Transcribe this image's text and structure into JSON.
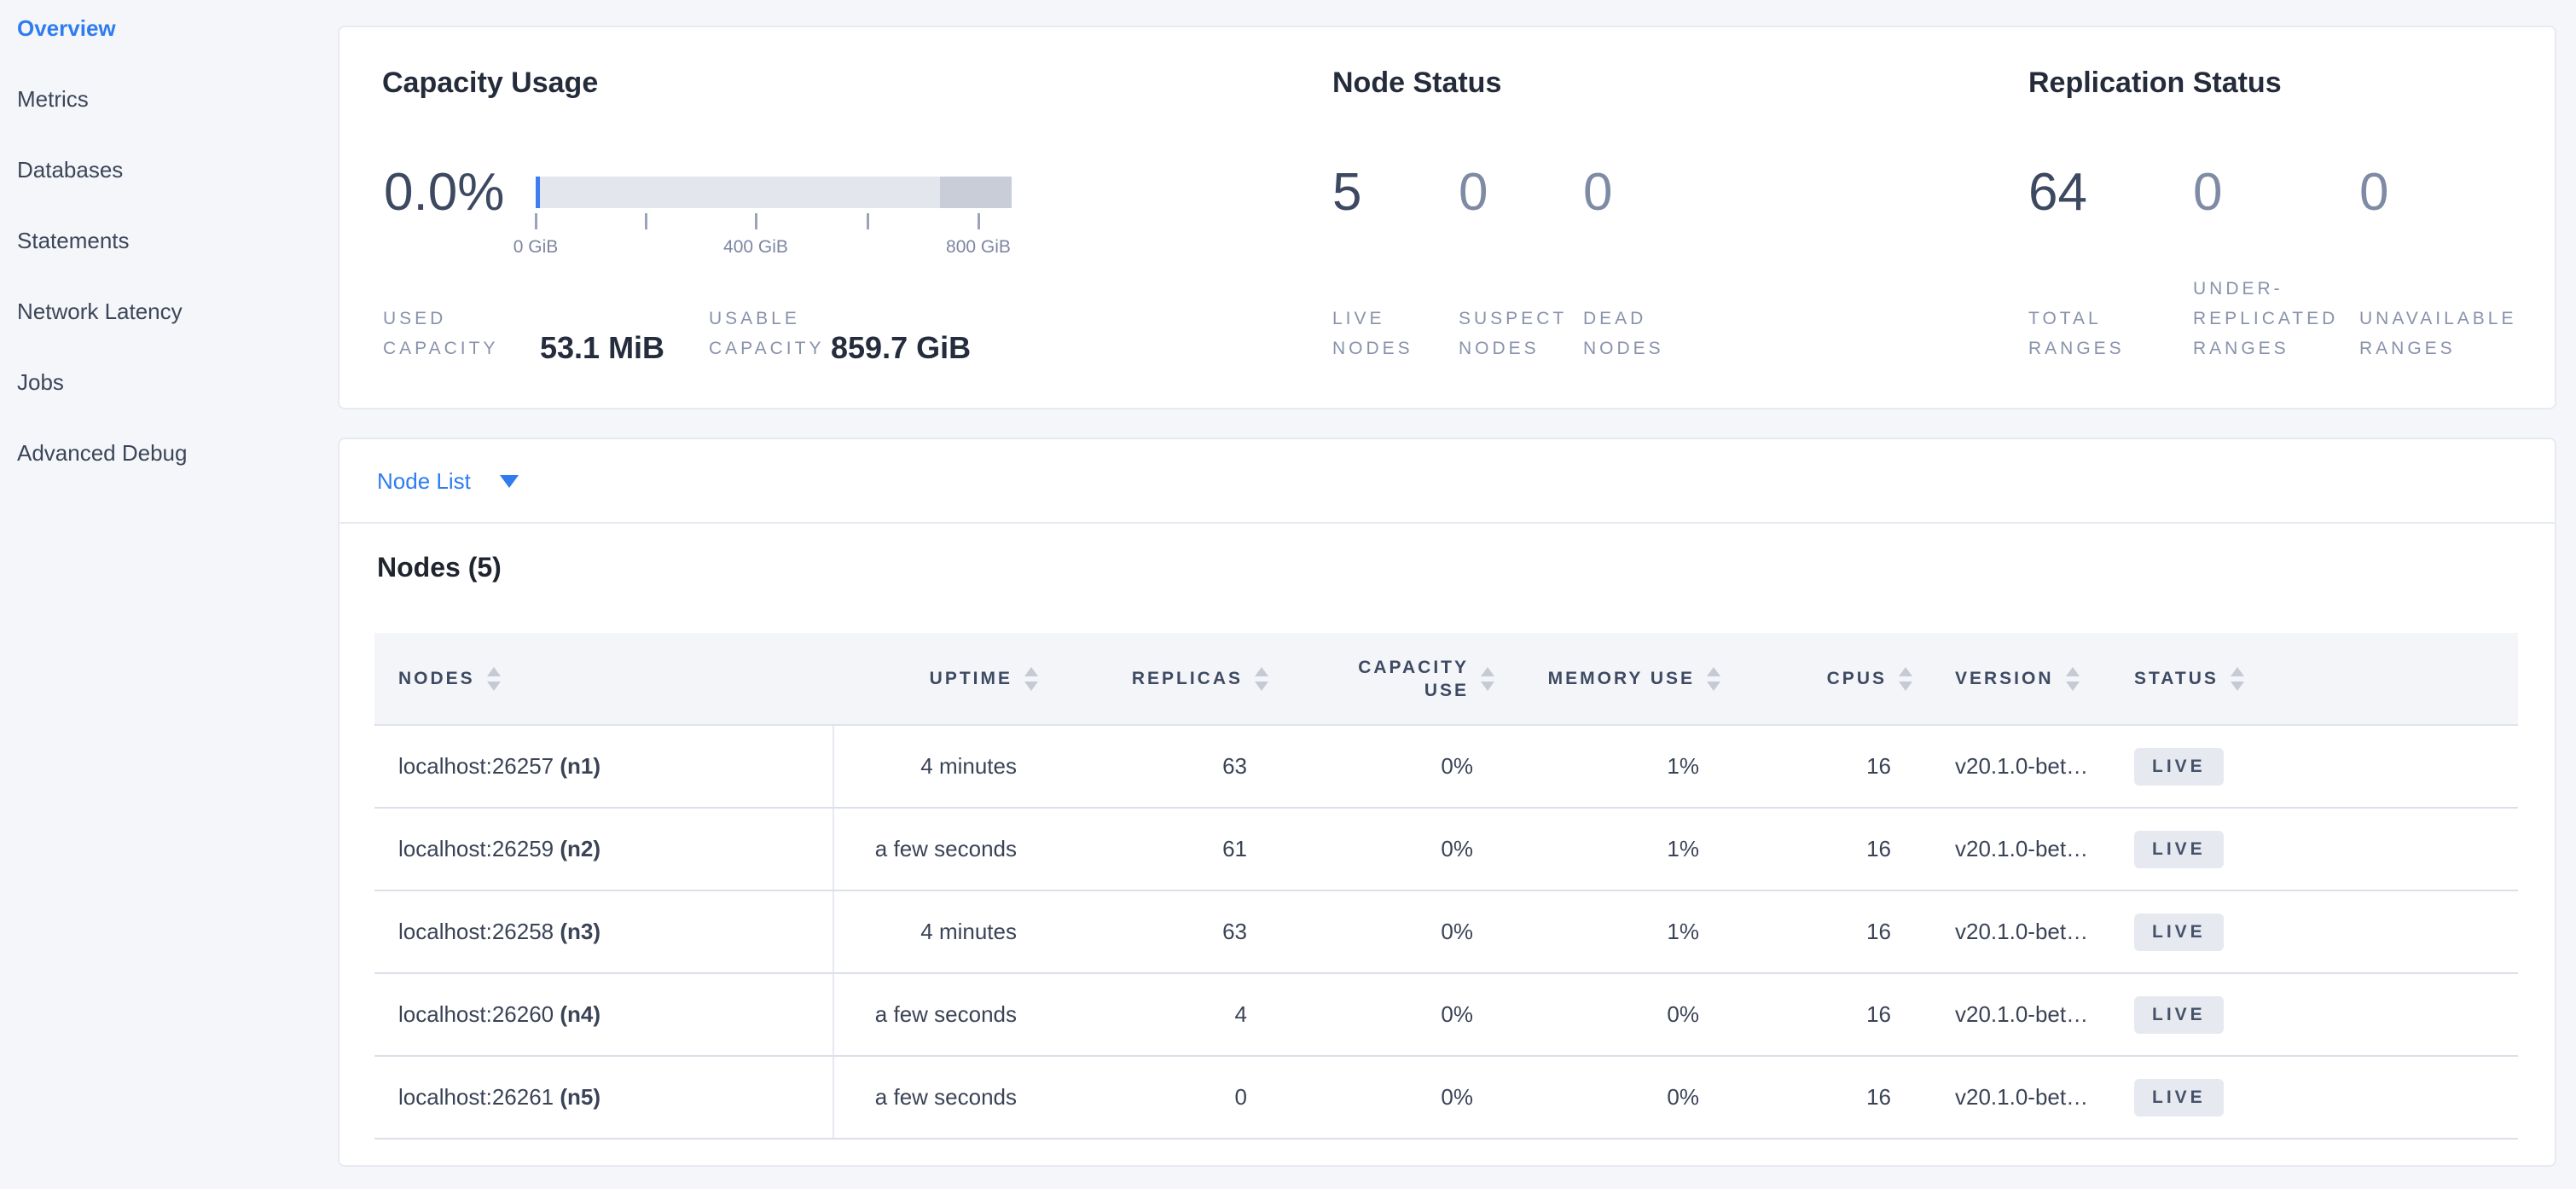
{
  "sidebar": {
    "items": [
      {
        "label": "Overview",
        "active": true
      },
      {
        "label": "Metrics",
        "active": false
      },
      {
        "label": "Databases",
        "active": false
      },
      {
        "label": "Statements",
        "active": false
      },
      {
        "label": "Network Latency",
        "active": false
      },
      {
        "label": "Jobs",
        "active": false
      },
      {
        "label": "Advanced Debug",
        "active": false
      }
    ],
    "active_color": "#2e7cf0"
  },
  "summary": {
    "capacity": {
      "title": "Capacity Usage",
      "percent": "0.0%",
      "axis_labels": [
        "0 GiB",
        "",
        "400 GiB",
        "",
        "800 GiB"
      ],
      "bar_colors": {
        "track": "#e3e6ed",
        "other": "#c9cdd7",
        "used": "#3f7ef2"
      },
      "stats": [
        {
          "name": "used-capacity",
          "label": [
            "USED",
            "CAPACITY"
          ],
          "value": "53.1 MiB"
        },
        {
          "name": "usable-capacity",
          "label": [
            "USABLE",
            "CAPACITY"
          ],
          "value": "859.7 GiB"
        }
      ]
    },
    "node_status": {
      "title": "Node Status",
      "stats": [
        {
          "name": "live-nodes",
          "value": "5",
          "label": [
            "LIVE",
            "NODES"
          ],
          "em": true
        },
        {
          "name": "suspect-nodes",
          "value": "0",
          "label": [
            "SUSPECT",
            "NODES"
          ],
          "em": false
        },
        {
          "name": "dead-nodes",
          "value": "0",
          "label": [
            "DEAD",
            "NODES"
          ],
          "em": false
        }
      ]
    },
    "replication": {
      "title": "Replication Status",
      "stats": [
        {
          "name": "total-ranges",
          "value": "64",
          "label": [
            "TOTAL",
            "RANGES"
          ],
          "em": true
        },
        {
          "name": "under-replicated-ranges",
          "value": "0",
          "label": [
            "UNDER-",
            "REPLICATED",
            "RANGES"
          ],
          "em": false
        },
        {
          "name": "unavailable-ranges",
          "value": "0",
          "label": [
            "UNAVAILABLE",
            "RANGES"
          ],
          "em": false
        }
      ]
    }
  },
  "node_list": {
    "label": "Node List"
  },
  "nodes": {
    "title": "Nodes (5)",
    "columns": [
      {
        "key": "nodes",
        "label": [
          "NODES"
        ],
        "align": "left"
      },
      {
        "key": "uptime",
        "label": [
          "UPTIME"
        ],
        "align": "right"
      },
      {
        "key": "replicas",
        "label": [
          "REPLICAS"
        ],
        "align": "right"
      },
      {
        "key": "capacity",
        "label": [
          "CAPACITY",
          "USE"
        ],
        "align": "right"
      },
      {
        "key": "memory",
        "label": [
          "MEMORY USE"
        ],
        "align": "right"
      },
      {
        "key": "cpus",
        "label": [
          "CPUS"
        ],
        "align": "right"
      },
      {
        "key": "version",
        "label": [
          "VERSION"
        ],
        "align": "left"
      },
      {
        "key": "status",
        "label": [
          "STATUS"
        ],
        "align": "left"
      }
    ],
    "rows": [
      {
        "address": "localhost:26257",
        "id": "(n1)",
        "uptime": "4 minutes",
        "replicas": "63",
        "capacity": "0%",
        "memory": "1%",
        "cpus": "16",
        "version": "v20.1.0-bet…",
        "status": "LIVE"
      },
      {
        "address": "localhost:26259",
        "id": "(n2)",
        "uptime": "a few seconds",
        "replicas": "61",
        "capacity": "0%",
        "memory": "1%",
        "cpus": "16",
        "version": "v20.1.0-bet…",
        "status": "LIVE"
      },
      {
        "address": "localhost:26258",
        "id": "(n3)",
        "uptime": "4 minutes",
        "replicas": "63",
        "capacity": "0%",
        "memory": "1%",
        "cpus": "16",
        "version": "v20.1.0-bet…",
        "status": "LIVE"
      },
      {
        "address": "localhost:26260",
        "id": "(n4)",
        "uptime": "a few seconds",
        "replicas": "4",
        "capacity": "0%",
        "memory": "0%",
        "cpus": "16",
        "version": "v20.1.0-bet…",
        "status": "LIVE"
      },
      {
        "address": "localhost:26261",
        "id": "(n5)",
        "uptime": "a few seconds",
        "replicas": "0",
        "capacity": "0%",
        "memory": "0%",
        "cpus": "16",
        "version": "v20.1.0-bet…",
        "status": "LIVE"
      }
    ]
  }
}
